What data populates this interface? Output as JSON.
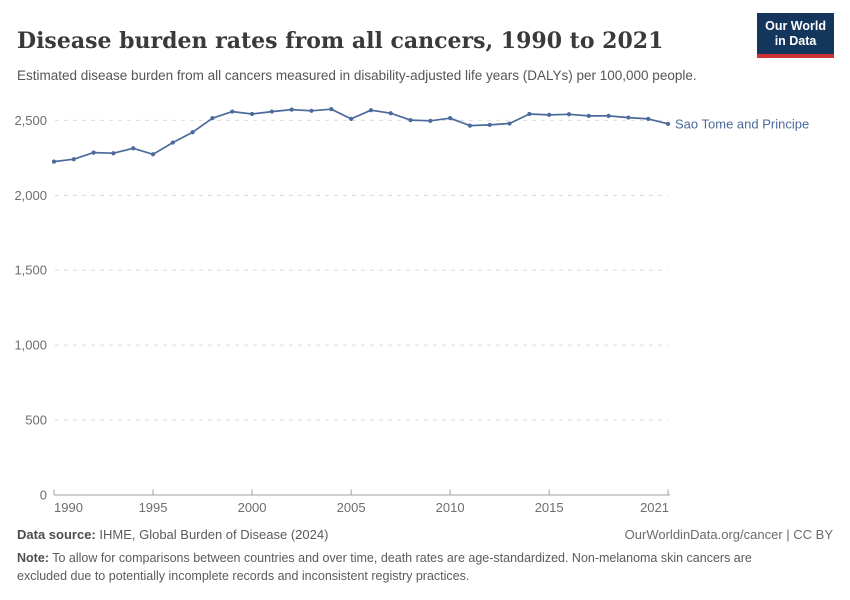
{
  "header": {
    "title": "Disease burden rates from all cancers, 1990 to 2021",
    "subtitle": "Estimated disease burden from all cancers measured in disability-adjusted life years (DALYs) per 100,000 people.",
    "logo": {
      "line1": "Our World",
      "line2": "in Data",
      "bg_color": "#14355c",
      "stripe_color": "#cf3235"
    }
  },
  "chart_data": {
    "type": "line",
    "title": "Disease burden rates from all cancers, 1990 to 2021",
    "xlabel": "",
    "ylabel": "",
    "xlim": [
      1990,
      2021
    ],
    "ylim": [
      0,
      2500
    ],
    "grid": "horizontal-dashed",
    "legend_position": "end-of-line-label",
    "xticks": [
      1990,
      1995,
      2000,
      2005,
      2010,
      2015,
      2021
    ],
    "xtick_labels": [
      "1990",
      "1995",
      "2000",
      "2005",
      "2010",
      "2015",
      "2021"
    ],
    "yticks": [
      0,
      500,
      1000,
      1500,
      2000,
      2500
    ],
    "ytick_labels": [
      "0",
      "500",
      "1,000",
      "1,500",
      "2,000",
      "2,500"
    ],
    "x": [
      1990,
      1991,
      1992,
      1993,
      1994,
      1995,
      1996,
      1997,
      1998,
      1999,
      2000,
      2001,
      2002,
      2003,
      2004,
      2005,
      2006,
      2007,
      2008,
      2009,
      2010,
      2011,
      2012,
      2013,
      2014,
      2015,
      2016,
      2017,
      2018,
      2019,
      2020,
      2021
    ],
    "series": [
      {
        "name": "Sao Tome and Principe",
        "color": "#4c6a9c",
        "values": [
          2225,
          2241,
          2285,
          2281,
          2314,
          2274,
          2352,
          2421,
          2515,
          2559,
          2543,
          2559,
          2572,
          2564,
          2575,
          2510,
          2568,
          2548,
          2502,
          2497,
          2515,
          2465,
          2470,
          2479,
          2543,
          2537,
          2541,
          2530,
          2530,
          2519,
          2510,
          2477
        ]
      }
    ],
    "axis_color": "#a0a0a0",
    "gridline_color": "#dcdcdc",
    "tick_label_color": "#6e6e6e"
  },
  "footer": {
    "datasource_label": "Data source:",
    "datasource_value": " IHME, Global Burden of Disease (2024)",
    "rights": "OurWorldinData.org/cancer | CC BY",
    "note_label": "Note:",
    "note_value": " To allow for comparisons between countries and over time, death rates are age-standardized. Non-melanoma skin cancers are excluded due to potentially incomplete records and inconsistent registry practices."
  }
}
